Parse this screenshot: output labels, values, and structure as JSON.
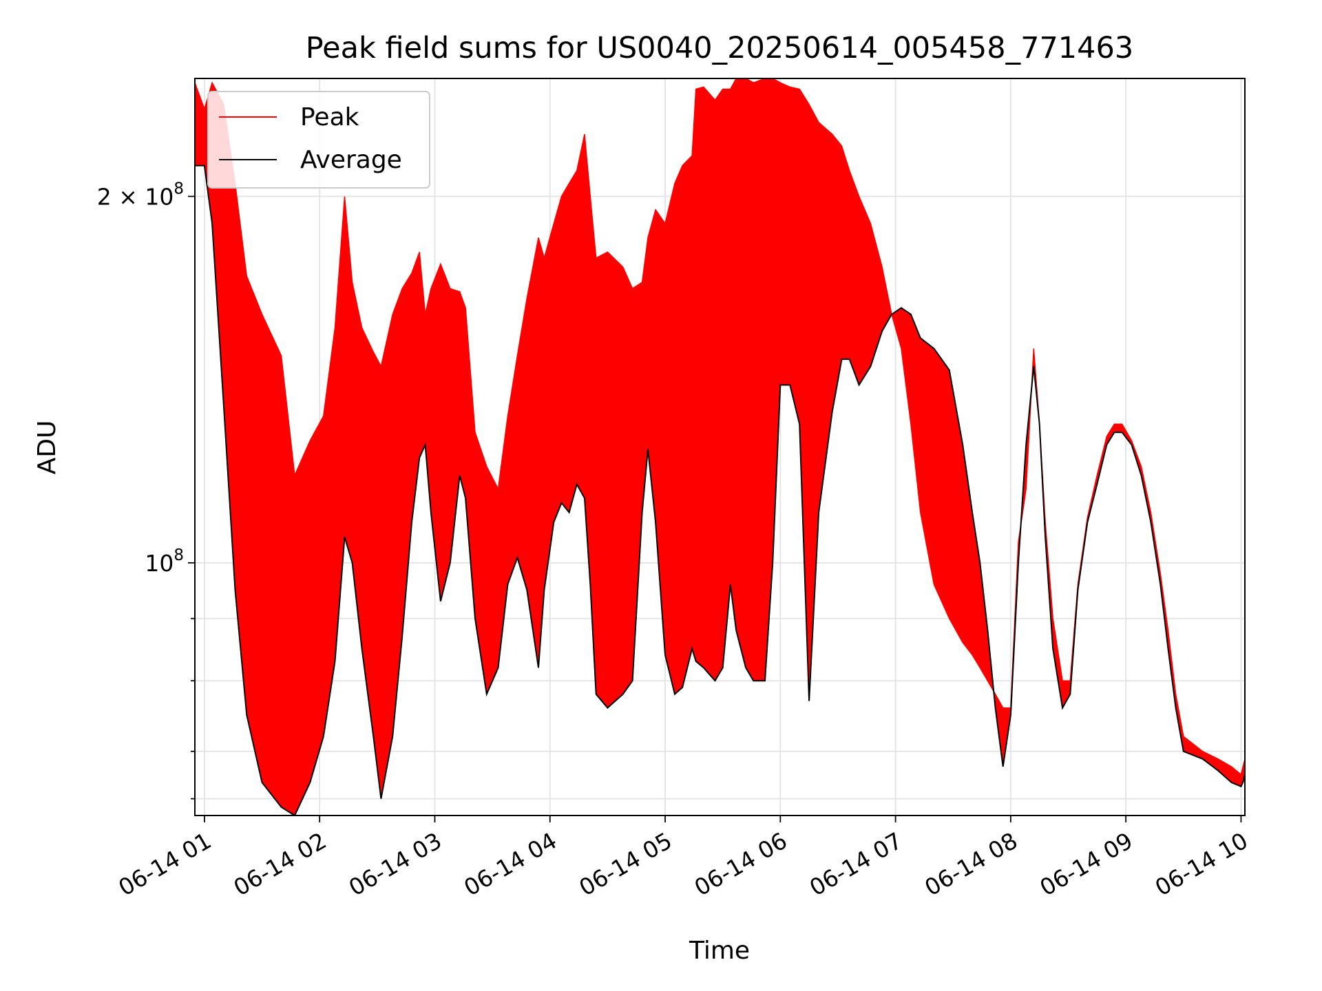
{
  "chart_data": {
    "type": "line",
    "title": "Peak field sums for US0040_20250614_005458_771463",
    "xlabel": "Time",
    "ylabel": "ADU",
    "yscale": "log",
    "xlim": [
      "06-14 00:55",
      "06-14 10:02"
    ],
    "ylim": [
      62000000,
      250000000
    ],
    "grid": true,
    "legend_position": "top-left",
    "x_ticks": [
      "06-14 01",
      "06-14 02",
      "06-14 03",
      "06-14 04",
      "06-14 05",
      "06-14 06",
      "06-14 07",
      "06-14 08",
      "06-14 09",
      "06-14 10"
    ],
    "y_major_ticks": [
      {
        "value": 100000000,
        "label": "10",
        "exponent": "8"
      },
      {
        "value": 200000000,
        "label": "2 × 10",
        "exponent": "8"
      }
    ],
    "y_minor_ticks": [
      64000000,
      70000000,
      80000000,
      90000000
    ],
    "series": [
      {
        "name": "Average",
        "color": "#000000",
        "points": [
          [
            "06-14 00:55",
            212000000
          ],
          [
            "06-14 01:00",
            212000000
          ],
          [
            "06-14 01:04",
            190000000
          ],
          [
            "06-14 01:10",
            135000000
          ],
          [
            "06-14 01:16",
            95000000
          ],
          [
            "06-14 01:22",
            75000000
          ],
          [
            "06-14 01:30",
            66000000
          ],
          [
            "06-14 01:40",
            63000000
          ],
          [
            "06-14 01:47",
            62000000
          ],
          [
            "06-14 01:55",
            66000000
          ],
          [
            "06-14 02:02",
            72000000
          ],
          [
            "06-14 02:08",
            83000000
          ],
          [
            "06-14 02:13",
            105000000
          ],
          [
            "06-14 02:17",
            100000000
          ],
          [
            "06-14 02:22",
            85000000
          ],
          [
            "06-14 02:28",
            72000000
          ],
          [
            "06-14 02:32",
            64000000
          ],
          [
            "06-14 02:38",
            72000000
          ],
          [
            "06-14 02:43",
            87000000
          ],
          [
            "06-14 02:48",
            108000000
          ],
          [
            "06-14 02:52",
            122000000
          ],
          [
            "06-14 02:55",
            125000000
          ],
          [
            "06-14 02:58",
            110000000
          ],
          [
            "06-14 03:03",
            93000000
          ],
          [
            "06-14 03:08",
            100000000
          ],
          [
            "06-14 03:13",
            118000000
          ],
          [
            "06-14 03:16",
            113000000
          ],
          [
            "06-14 03:21",
            90000000
          ],
          [
            "06-14 03:27",
            78000000
          ],
          [
            "06-14 03:33",
            82000000
          ],
          [
            "06-14 03:38",
            96000000
          ],
          [
            "06-14 03:43",
            101000000
          ],
          [
            "06-14 03:48",
            95000000
          ],
          [
            "06-14 03:54",
            82000000
          ],
          [
            "06-14 03:57",
            95000000
          ],
          [
            "06-14 04:02",
            108000000
          ],
          [
            "06-14 04:06",
            112000000
          ],
          [
            "06-14 04:10",
            110000000
          ],
          [
            "06-14 04:14",
            116000000
          ],
          [
            "06-14 04:18",
            113000000
          ],
          [
            "06-14 04:21",
            96000000
          ],
          [
            "06-14 04:24",
            78000000
          ],
          [
            "06-14 04:30",
            76000000
          ],
          [
            "06-14 04:38",
            78000000
          ],
          [
            "06-14 04:43",
            80000000
          ],
          [
            "06-14 04:48",
            110000000
          ],
          [
            "06-14 04:51",
            124000000
          ],
          [
            "06-14 04:55",
            108000000
          ],
          [
            "06-14 05:00",
            84000000
          ],
          [
            "06-14 05:05",
            78000000
          ],
          [
            "06-14 05:09",
            79000000
          ],
          [
            "06-14 05:14",
            85000000
          ],
          [
            "06-14 05:16",
            83000000
          ],
          [
            "06-14 05:20",
            82000000
          ],
          [
            "06-14 05:26",
            80000000
          ],
          [
            "06-14 05:30",
            82000000
          ],
          [
            "06-14 05:34",
            96000000
          ],
          [
            "06-14 05:37",
            88000000
          ],
          [
            "06-14 05:42",
            82000000
          ],
          [
            "06-14 05:46",
            80000000
          ],
          [
            "06-14 05:52",
            80000000
          ],
          [
            "06-14 05:56",
            100000000
          ],
          [
            "06-14 06:00",
            140000000
          ],
          [
            "06-14 06:05",
            140000000
          ],
          [
            "06-14 06:10",
            130000000
          ],
          [
            "06-14 06:15",
            77000000
          ],
          [
            "06-14 06:20",
            110000000
          ],
          [
            "06-14 06:27",
            133000000
          ],
          [
            "06-14 06:32",
            147000000
          ],
          [
            "06-14 06:36",
            147000000
          ],
          [
            "06-14 06:41",
            140000000
          ],
          [
            "06-14 06:47",
            145000000
          ],
          [
            "06-14 06:53",
            155000000
          ],
          [
            "06-14 06:58",
            160000000
          ],
          [
            "06-14 07:03",
            162000000
          ],
          [
            "06-14 07:08",
            160000000
          ],
          [
            "06-14 07:13",
            153000000
          ],
          [
            "06-14 07:20",
            150000000
          ],
          [
            "06-14 07:28",
            144000000
          ],
          [
            "06-14 07:35",
            125000000
          ],
          [
            "06-14 07:40",
            110000000
          ],
          [
            "06-14 07:44",
            100000000
          ],
          [
            "06-14 07:48",
            88000000
          ],
          [
            "06-14 07:52",
            76000000
          ],
          [
            "06-14 07:56",
            68000000
          ],
          [
            "06-14 08:00",
            75000000
          ],
          [
            "06-14 08:04",
            100000000
          ],
          [
            "06-14 08:08",
            125000000
          ],
          [
            "06-14 08:12",
            145000000
          ],
          [
            "06-14 08:15",
            130000000
          ],
          [
            "06-14 08:18",
            105000000
          ],
          [
            "06-14 08:22",
            85000000
          ],
          [
            "06-14 08:27",
            76000000
          ],
          [
            "06-14 08:31",
            78000000
          ],
          [
            "06-14 08:35",
            95000000
          ],
          [
            "06-14 08:40",
            108000000
          ],
          [
            "06-14 08:45",
            116000000
          ],
          [
            "06-14 08:50",
            125000000
          ],
          [
            "06-14 08:54",
            128000000
          ],
          [
            "06-14 08:58",
            128000000
          ],
          [
            "06-14 09:03",
            125000000
          ],
          [
            "06-14 09:08",
            118000000
          ],
          [
            "06-14 09:13",
            108000000
          ],
          [
            "06-14 09:18",
            96000000
          ],
          [
            "06-14 09:22",
            85000000
          ],
          [
            "06-14 09:26",
            76000000
          ],
          [
            "06-14 09:30",
            70000000
          ],
          [
            "06-14 09:40",
            69000000
          ],
          [
            "06-14 09:48",
            67500000
          ],
          [
            "06-14 09:55",
            66000000
          ],
          [
            "06-14 10:00",
            65500000
          ],
          [
            "06-14 10:01",
            66000000
          ],
          [
            "06-14 10:02",
            67000000
          ]
        ]
      },
      {
        "name": "Peak",
        "color": "#ff0000",
        "points": [
          [
            "06-14 00:55",
            248000000
          ],
          [
            "06-14 01:00",
            236000000
          ],
          [
            "06-14 01:04",
            248000000
          ],
          [
            "06-14 01:10",
            238000000
          ],
          [
            "06-14 01:16",
            205000000
          ],
          [
            "06-14 01:22",
            172000000
          ],
          [
            "06-14 01:30",
            160000000
          ],
          [
            "06-14 01:40",
            148000000
          ],
          [
            "06-14 01:47",
            118000000
          ],
          [
            "06-14 01:55",
            126000000
          ],
          [
            "06-14 02:02",
            132000000
          ],
          [
            "06-14 02:08",
            156000000
          ],
          [
            "06-14 02:13",
            200000000
          ],
          [
            "06-14 02:17",
            170000000
          ],
          [
            "06-14 02:22",
            156000000
          ],
          [
            "06-14 02:28",
            149000000
          ],
          [
            "06-14 02:32",
            145000000
          ],
          [
            "06-14 02:38",
            160000000
          ],
          [
            "06-14 02:43",
            168000000
          ],
          [
            "06-14 02:48",
            173000000
          ],
          [
            "06-14 02:52",
            180000000
          ],
          [
            "06-14 02:55",
            160000000
          ],
          [
            "06-14 02:58",
            168000000
          ],
          [
            "06-14 03:03",
            176000000
          ],
          [
            "06-14 03:08",
            168000000
          ],
          [
            "06-14 03:13",
            167000000
          ],
          [
            "06-14 03:16",
            162000000
          ],
          [
            "06-14 03:21",
            128000000
          ],
          [
            "06-14 03:27",
            120000000
          ],
          [
            "06-14 03:33",
            115000000
          ],
          [
            "06-14 03:38",
            132000000
          ],
          [
            "06-14 03:43",
            148000000
          ],
          [
            "06-14 03:48",
            165000000
          ],
          [
            "06-14 03:54",
            185000000
          ],
          [
            "06-14 03:57",
            178000000
          ],
          [
            "06-14 04:02",
            190000000
          ],
          [
            "06-14 04:06",
            200000000
          ],
          [
            "06-14 04:10",
            205000000
          ],
          [
            "06-14 04:14",
            210000000
          ],
          [
            "06-14 04:18",
            225000000
          ],
          [
            "06-14 04:21",
            200000000
          ],
          [
            "06-14 04:24",
            178000000
          ],
          [
            "06-14 04:30",
            180000000
          ],
          [
            "06-14 04:38",
            175000000
          ],
          [
            "06-14 04:43",
            168000000
          ],
          [
            "06-14 04:48",
            170000000
          ],
          [
            "06-14 04:51",
            185000000
          ],
          [
            "06-14 04:55",
            195000000
          ],
          [
            "06-14 05:00",
            190000000
          ],
          [
            "06-14 05:05",
            205000000
          ],
          [
            "06-14 05:09",
            212000000
          ],
          [
            "06-14 05:14",
            216000000
          ],
          [
            "06-14 05:16",
            245000000
          ],
          [
            "06-14 05:20",
            246000000
          ],
          [
            "06-14 05:26",
            240000000
          ],
          [
            "06-14 05:30",
            245000000
          ],
          [
            "06-14 05:34",
            245000000
          ],
          [
            "06-14 05:37",
            250000000
          ],
          [
            "06-14 05:42",
            250000000
          ],
          [
            "06-14 05:46",
            248000000
          ],
          [
            "06-14 05:52",
            250000000
          ],
          [
            "06-14 05:56",
            250000000
          ],
          [
            "06-14 06:00",
            248000000
          ],
          [
            "06-14 06:05",
            246000000
          ],
          [
            "06-14 06:10",
            245000000
          ],
          [
            "06-14 06:15",
            238000000
          ],
          [
            "06-14 06:20",
            230000000
          ],
          [
            "06-14 06:27",
            225000000
          ],
          [
            "06-14 06:32",
            220000000
          ],
          [
            "06-14 06:36",
            210000000
          ],
          [
            "06-14 06:41",
            200000000
          ],
          [
            "06-14 06:47",
            190000000
          ],
          [
            "06-14 06:53",
            175000000
          ],
          [
            "06-14 06:58",
            160000000
          ],
          [
            "06-14 07:03",
            150000000
          ],
          [
            "06-14 07:08",
            130000000
          ],
          [
            "06-14 07:13",
            110000000
          ],
          [
            "06-14 07:20",
            96000000
          ],
          [
            "06-14 07:28",
            90000000
          ],
          [
            "06-14 07:35",
            86000000
          ],
          [
            "06-14 07:40",
            84000000
          ],
          [
            "06-14 07:44",
            82000000
          ],
          [
            "06-14 07:48",
            80000000
          ],
          [
            "06-14 07:52",
            78000000
          ],
          [
            "06-14 07:56",
            76000000
          ],
          [
            "06-14 08:00",
            76000000
          ],
          [
            "06-14 08:04",
            104000000
          ],
          [
            "06-14 08:08",
            115000000
          ],
          [
            "06-14 08:12",
            150000000
          ],
          [
            "06-14 08:15",
            130000000
          ],
          [
            "06-14 08:18",
            108000000
          ],
          [
            "06-14 08:22",
            90000000
          ],
          [
            "06-14 08:27",
            80000000
          ],
          [
            "06-14 08:31",
            80000000
          ],
          [
            "06-14 08:35",
            96000000
          ],
          [
            "06-14 08:40",
            109000000
          ],
          [
            "06-14 08:45",
            118000000
          ],
          [
            "06-14 08:50",
            127000000
          ],
          [
            "06-14 08:54",
            130000000
          ],
          [
            "06-14 08:58",
            130000000
          ],
          [
            "06-14 09:03",
            126000000
          ],
          [
            "06-14 09:08",
            120000000
          ],
          [
            "06-14 09:13",
            110000000
          ],
          [
            "06-14 09:18",
            98000000
          ],
          [
            "06-14 09:22",
            88000000
          ],
          [
            "06-14 09:26",
            78000000
          ],
          [
            "06-14 09:30",
            72000000
          ],
          [
            "06-14 09:40",
            70000000
          ],
          [
            "06-14 09:48",
            69000000
          ],
          [
            "06-14 09:55",
            68000000
          ],
          [
            "06-14 10:00",
            67000000
          ],
          [
            "06-14 10:01",
            68000000
          ],
          [
            "06-14 10:02",
            69000000
          ]
        ]
      }
    ]
  }
}
